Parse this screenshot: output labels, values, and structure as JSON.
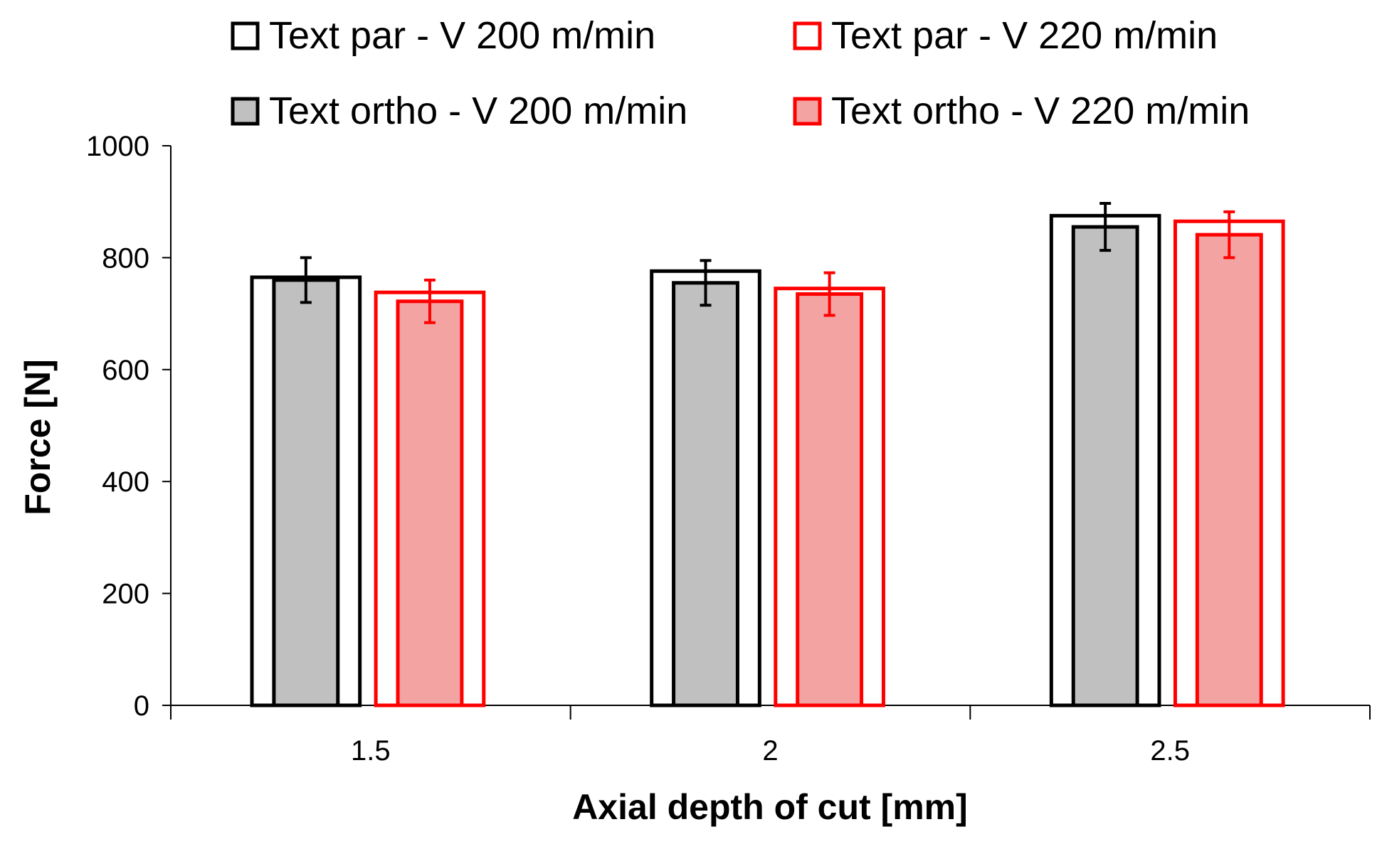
{
  "chart_data": {
    "type": "bar",
    "title": "",
    "xlabel": "Axial depth of cut [mm]",
    "ylabel": "Force [N]",
    "categories": [
      "1.5",
      "2",
      "2.5"
    ],
    "ylim": [
      0,
      1000
    ],
    "yticks": [
      0,
      200,
      400,
      600,
      800,
      1000
    ],
    "grid": false,
    "legend_position": "top",
    "series": [
      {
        "name": "Text par - V 200 m/min",
        "stroke": "#000000",
        "fill": "#ffffff",
        "values": [
          765,
          776,
          875
        ],
        "errors": [
          null,
          null,
          null
        ]
      },
      {
        "name": "Text ortho - V 200 m/min",
        "stroke": "#000000",
        "fill": "#c0c0c0",
        "values": [
          760,
          755,
          855
        ],
        "errors": [
          40,
          40,
          42
        ]
      },
      {
        "name": "Text par - V 220 m/min",
        "stroke": "#ff0000",
        "fill": "#ffffff",
        "values": [
          738,
          745,
          865
        ],
        "errors": [
          null,
          null,
          null
        ]
      },
      {
        "name": "Text ortho - V 220 m/min",
        "stroke": "#ff0000",
        "fill": "#f4a3a3",
        "values": [
          722,
          735,
          841
        ],
        "errors": [
          38,
          38,
          41
        ]
      }
    ]
  }
}
